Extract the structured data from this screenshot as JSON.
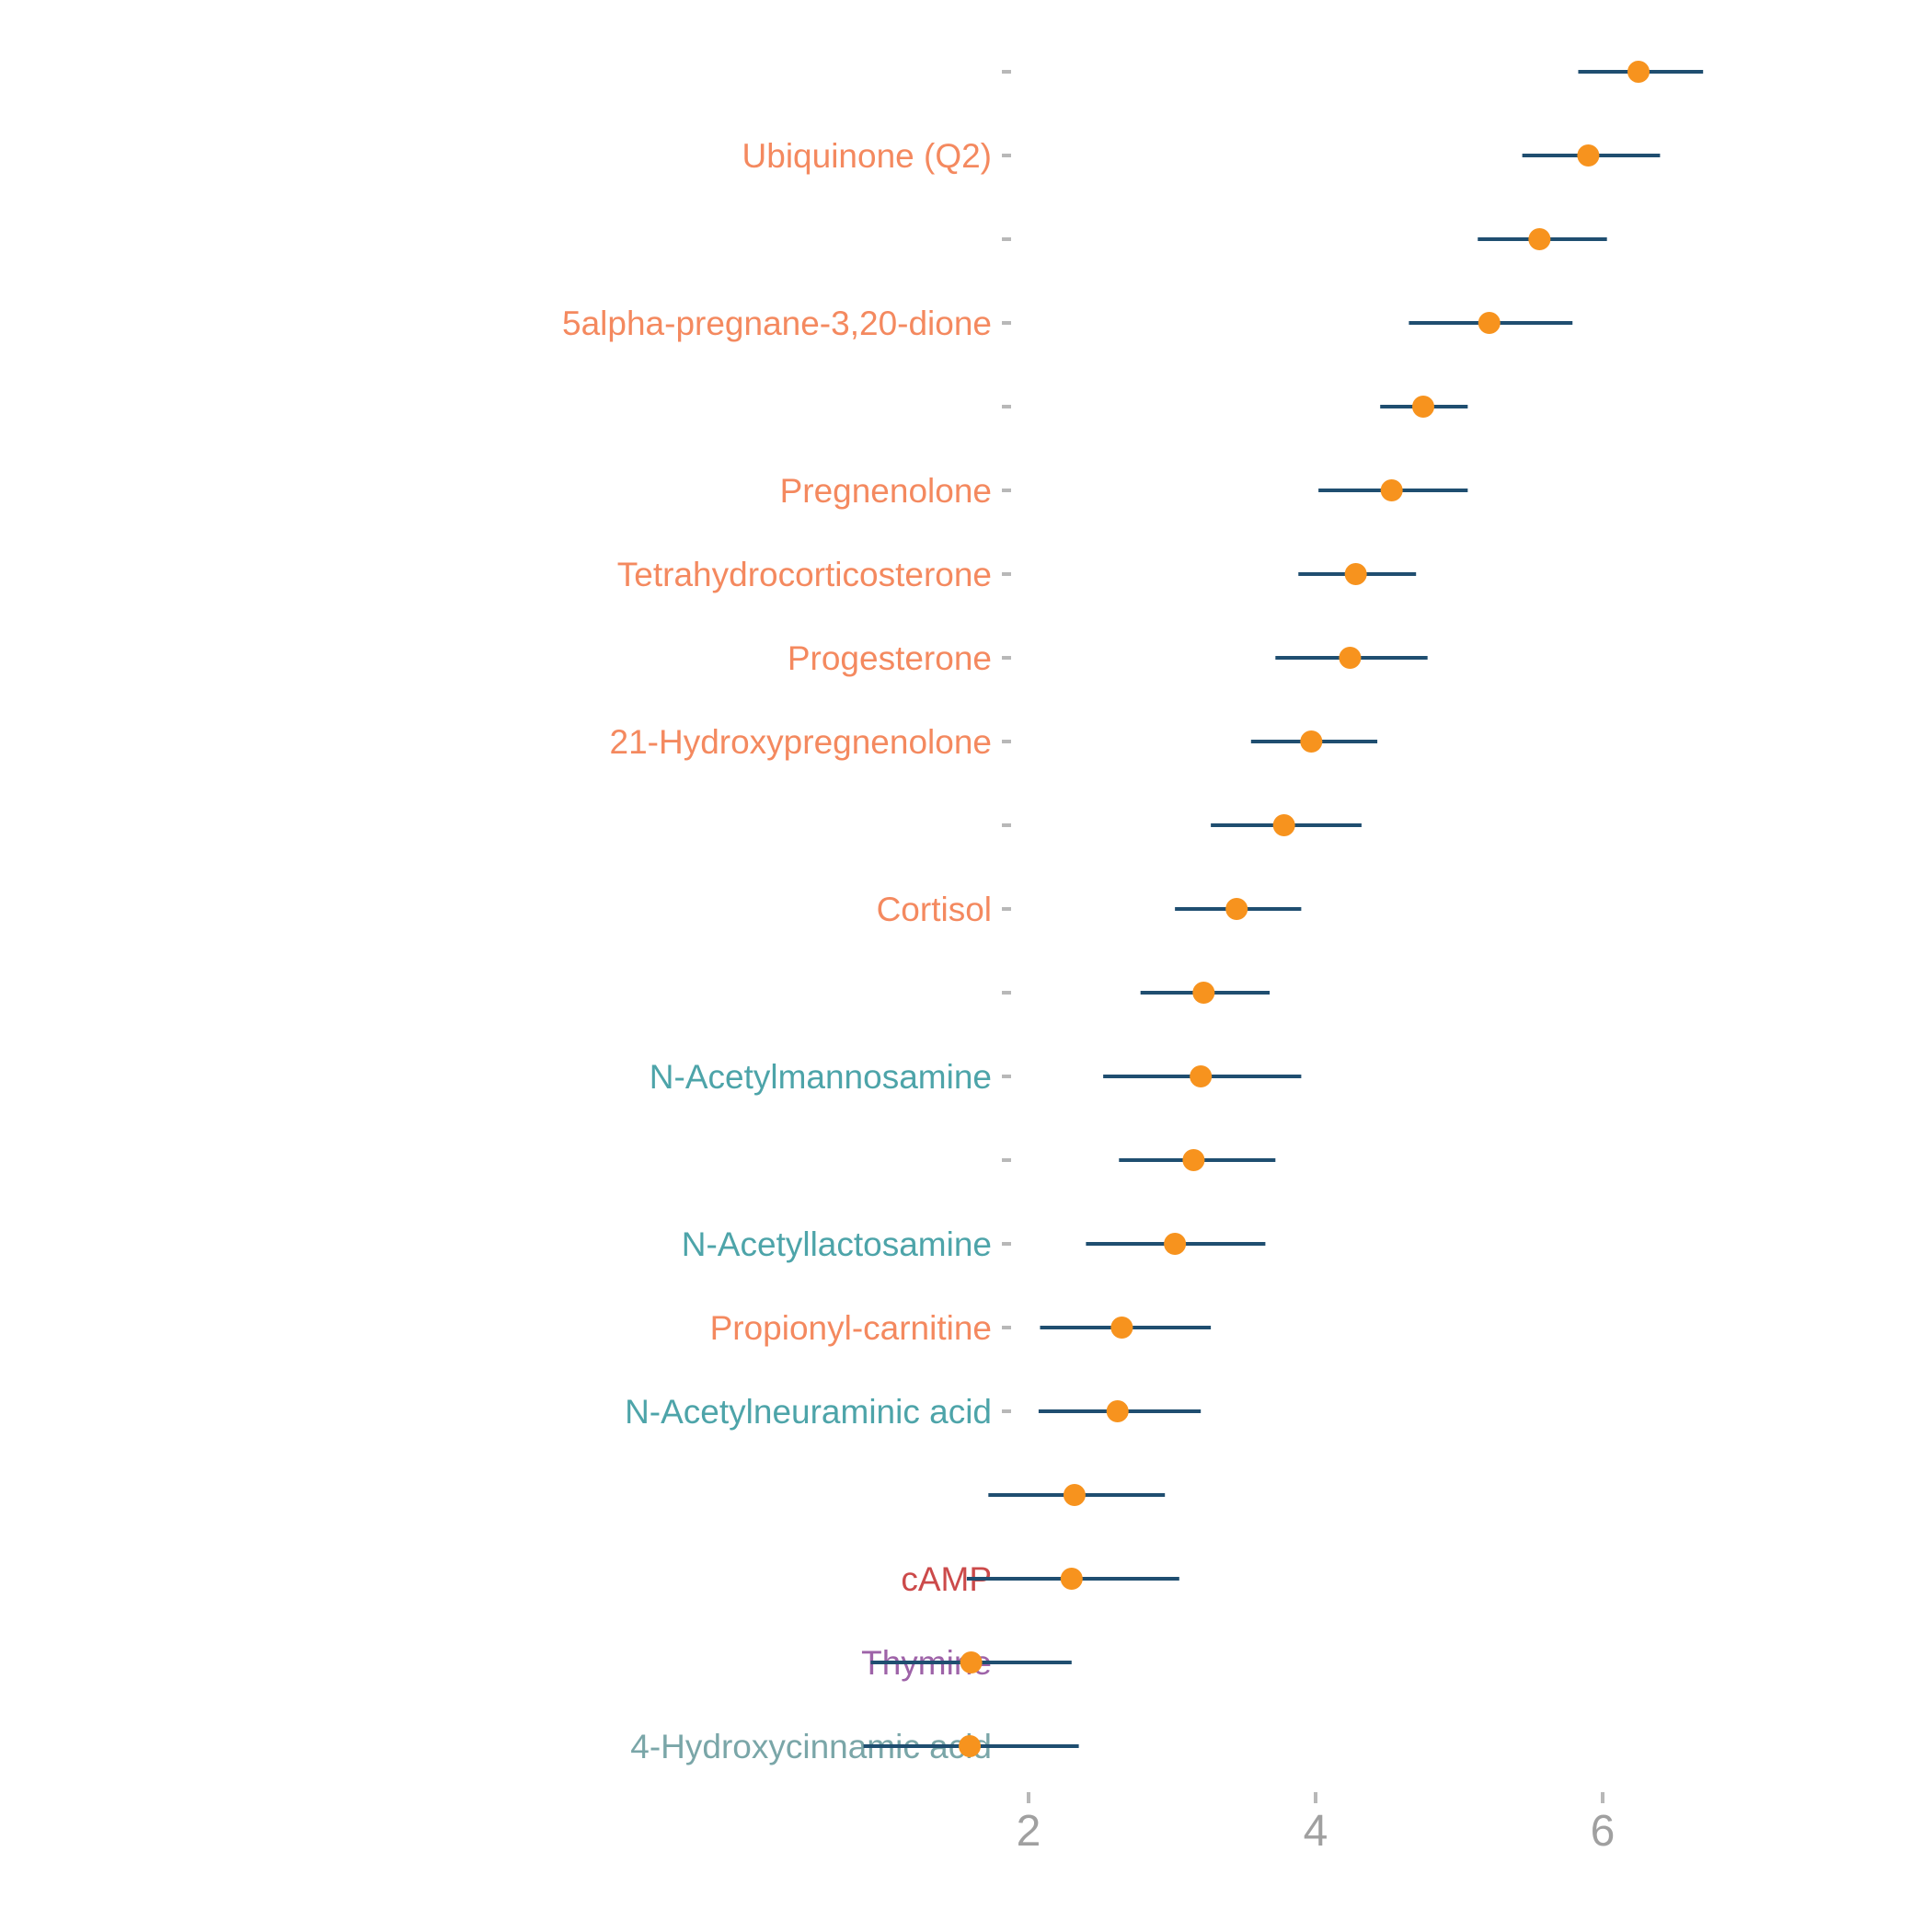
{
  "chart_data": {
    "type": "scatter",
    "orientation": "horizontal",
    "title": "",
    "xlabel": "",
    "ylabel": "",
    "xlim": [
      0.8,
      6.75
    ],
    "x_ticks": [
      2,
      4,
      6
    ],
    "x_tick_labels": [
      "2",
      "4",
      "6"
    ],
    "grid": false,
    "legend": "none",
    "point_color": "#f7931e",
    "interval_color": "#1f4e70",
    "categories": [
      {
        "label": "",
        "value": 6.25,
        "low": 5.83,
        "high": 6.7,
        "color": "#f4895f"
      },
      {
        "label": "Ubiquinone (Q2)",
        "value": 5.9,
        "low": 5.44,
        "high": 6.4,
        "color": "#f4895f"
      },
      {
        "label": "",
        "value": 5.56,
        "low": 5.13,
        "high": 6.03,
        "color": "#f4895f"
      },
      {
        "label": "5alpha-pregnane-3,20-dione",
        "value": 5.21,
        "low": 4.65,
        "high": 5.79,
        "color": "#f4895f"
      },
      {
        "label": "",
        "value": 4.75,
        "low": 4.45,
        "high": 5.06,
        "color": "#f4895f"
      },
      {
        "label": "Pregnenolone",
        "value": 4.53,
        "low": 4.02,
        "high": 5.06,
        "color": "#f4895f"
      },
      {
        "label": "Tetrahydrocorticosterone",
        "value": 4.28,
        "low": 3.88,
        "high": 4.7,
        "color": "#f4895f"
      },
      {
        "label": "Progesterone",
        "value": 4.24,
        "low": 3.72,
        "high": 4.78,
        "color": "#f4895f"
      },
      {
        "label": "21-Hydroxypregnenolone",
        "value": 3.97,
        "low": 3.55,
        "high": 4.43,
        "color": "#f4895f"
      },
      {
        "label": "",
        "value": 3.78,
        "low": 3.27,
        "high": 4.32,
        "color": "#f4895f"
      },
      {
        "label": "Cortisol",
        "value": 3.45,
        "low": 3.02,
        "high": 3.9,
        "color": "#f4895f"
      },
      {
        "label": "",
        "value": 3.22,
        "low": 2.78,
        "high": 3.68,
        "color": "#f4895f"
      },
      {
        "label": "N-Acetylmannosamine",
        "value": 3.2,
        "low": 2.52,
        "high": 3.9,
        "color": "#4da4a9"
      },
      {
        "label": "",
        "value": 3.15,
        "low": 2.63,
        "high": 3.72,
        "color": "#4da4a9"
      },
      {
        "label": "N-Acetyllactosamine",
        "value": 3.02,
        "low": 2.4,
        "high": 3.65,
        "color": "#4da4a9"
      },
      {
        "label": "Propionyl-carnitine",
        "value": 2.65,
        "low": 2.08,
        "high": 3.27,
        "color": "#f4895f"
      },
      {
        "label": "N-Acetylneuraminic acid",
        "value": 2.62,
        "low": 2.07,
        "high": 3.2,
        "color": "#4da4a9"
      },
      {
        "label": "",
        "value": 2.32,
        "low": 1.72,
        "high": 2.95,
        "color": "#4da4a9"
      },
      {
        "label": "cAMP",
        "value": 2.3,
        "low": 1.57,
        "high": 3.05,
        "color": "#cc4a4a"
      },
      {
        "label": "Thymine",
        "value": 1.6,
        "low": 0.9,
        "high": 2.3,
        "color": "#9e63a8"
      },
      {
        "label": "4-Hydroxycinnamic acid",
        "value": 1.59,
        "low": 0.85,
        "high": 2.35,
        "color": "#7aa6a8"
      }
    ]
  }
}
